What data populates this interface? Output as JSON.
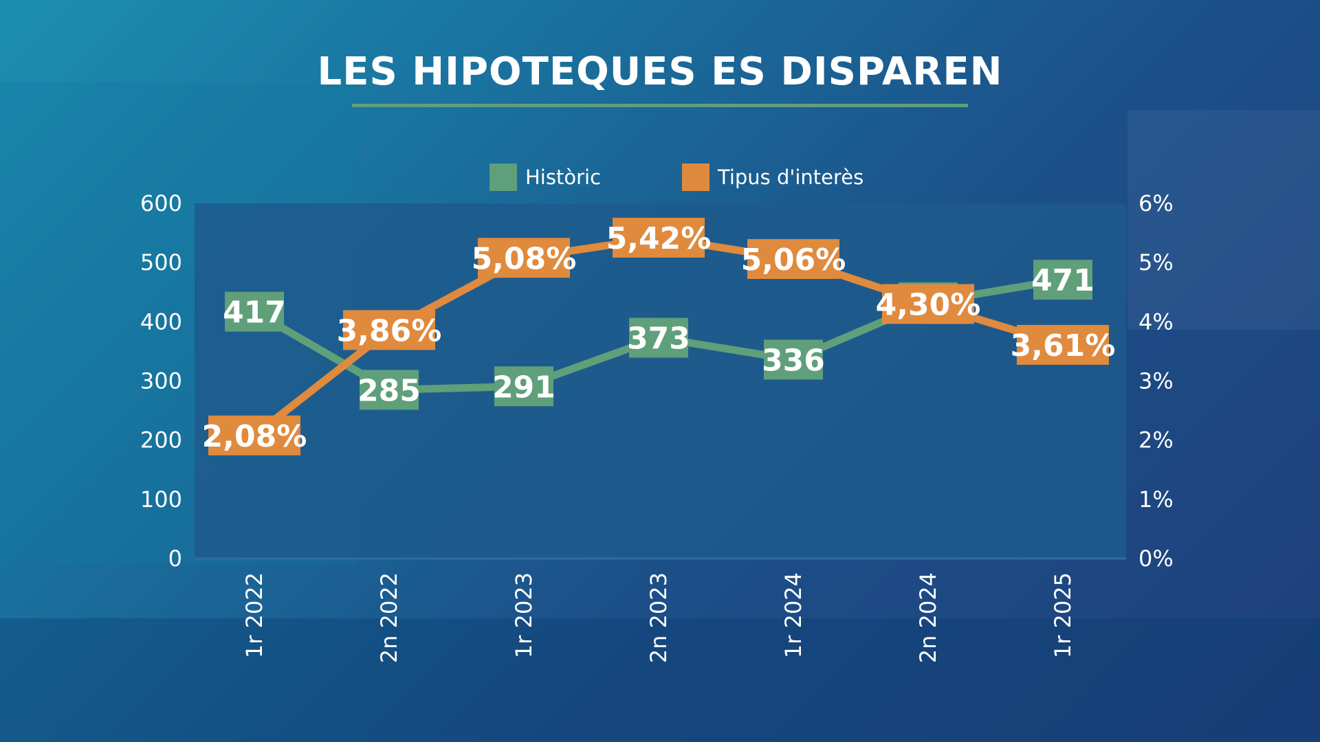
{
  "title": "LES HIPOTEQUES ES DISPAREN",
  "colors": {
    "historic": "#5f9f7a",
    "rate": "#e08a3e",
    "plot_bg": "#1f5a8c"
  },
  "chart_data": {
    "type": "line",
    "title": "LES HIPOTEQUES ES DISPAREN",
    "categories": [
      "1r 2022",
      "2n 2022",
      "1r 2023",
      "2n 2023",
      "1r 2024",
      "2n 2024",
      "1r 2025"
    ],
    "series": [
      {
        "name": "Històric",
        "axis": "left",
        "values": [
          417,
          285,
          291,
          373,
          336,
          433,
          471
        ],
        "labels": [
          "417",
          "285",
          "291",
          "373",
          "336",
          "433",
          "471"
        ]
      },
      {
        "name": "Tipus d'interès",
        "axis": "right",
        "values": [
          2.08,
          3.86,
          5.08,
          5.42,
          5.06,
          4.3,
          3.61
        ],
        "labels": [
          "2,08%",
          "3,86%",
          "5,08%",
          "5,42%",
          "5,06%",
          "4,30%",
          "3,61%"
        ]
      }
    ],
    "y_left": {
      "ylim": [
        0,
        600
      ],
      "ticks": [
        "0",
        "100",
        "200",
        "300",
        "400",
        "500",
        "600"
      ]
    },
    "y_right": {
      "ylim": [
        0,
        6
      ],
      "ticks": [
        "0%",
        "1%",
        "2%",
        "3%",
        "4%",
        "5%",
        "6%"
      ]
    },
    "legend": {
      "placement": "top-center"
    },
    "grid": false
  }
}
